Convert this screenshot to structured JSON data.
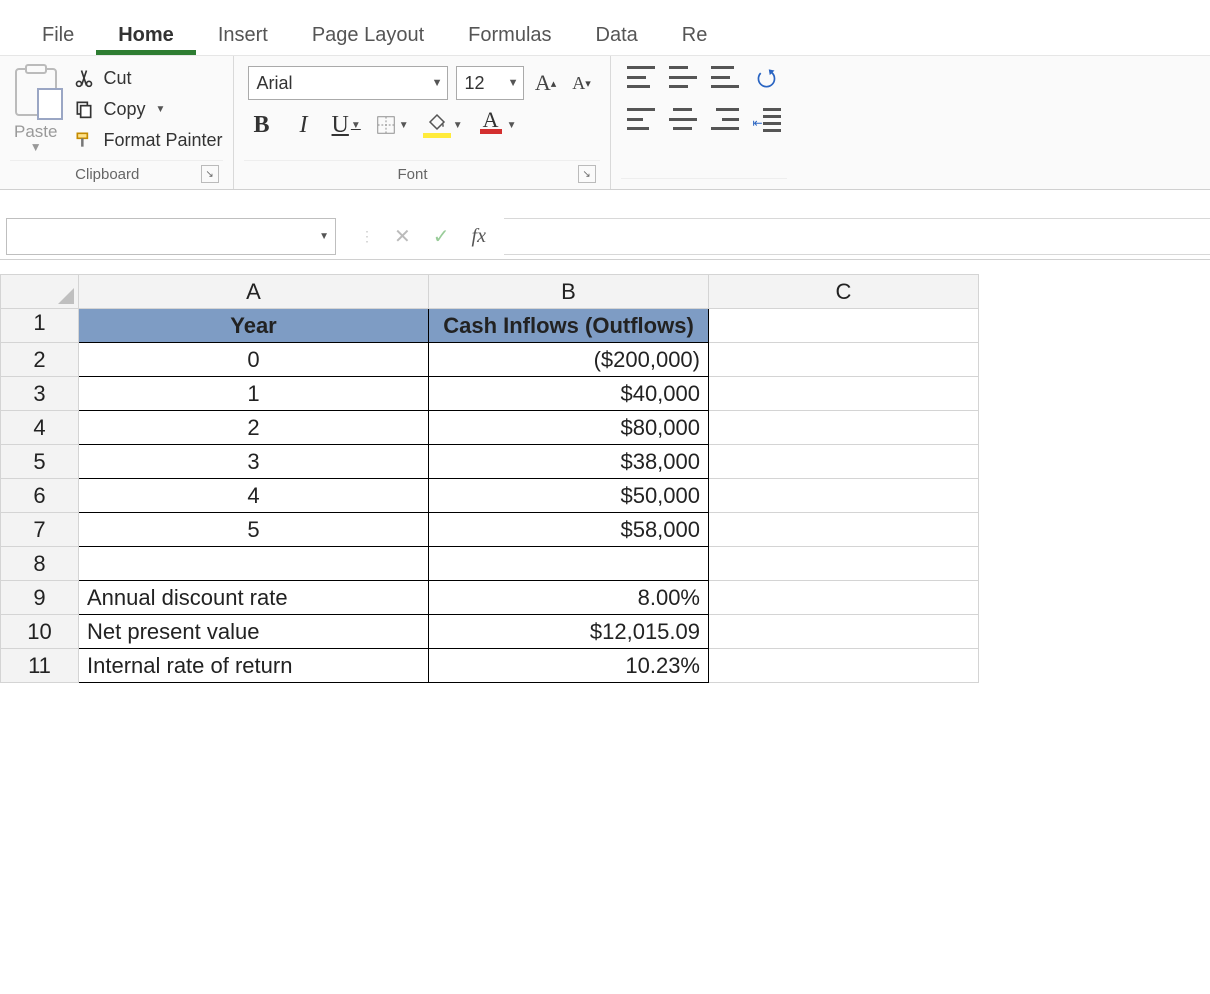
{
  "tabs": {
    "file": "File",
    "home": "Home",
    "insert": "Insert",
    "layout": "Page Layout",
    "formulas": "Formulas",
    "data": "Data",
    "review": "Re"
  },
  "active_tab": "home",
  "clipboard": {
    "paste_label": "Paste",
    "cut_label": "Cut",
    "copy_label": "Copy",
    "painter_label": "Format Painter",
    "group_label": "Clipboard"
  },
  "font": {
    "name_value": "Arial",
    "size_value": "12",
    "grow_label": "A",
    "shrink_label": "A",
    "group_label": "Font"
  },
  "formula_bar": {
    "name_box_value": "",
    "fx_label": "fx",
    "formula_value": ""
  },
  "sheet": {
    "col_widths": {
      "A": 350,
      "B": 280,
      "C": 270
    },
    "columns": [
      "A",
      "B",
      "C"
    ],
    "header_fill": "#7e9cc4",
    "header_row": {
      "A": "Year",
      "B": "Cash Inflows (Outflows)"
    },
    "data_rows": [
      {
        "row": 2,
        "A": "0",
        "B": "($200,000)"
      },
      {
        "row": 3,
        "A": "1",
        "B": "$40,000"
      },
      {
        "row": 4,
        "A": "2",
        "B": "$80,000"
      },
      {
        "row": 5,
        "A": "3",
        "B": "$38,000"
      },
      {
        "row": 6,
        "A": "4",
        "B": "$50,000"
      },
      {
        "row": 7,
        "A": "5",
        "B": "$58,000"
      }
    ],
    "blank_row": 8,
    "summary_rows": [
      {
        "row": 9,
        "A": "Annual discount rate",
        "B": "8.00%"
      },
      {
        "row": 10,
        "A": "Net present value",
        "B": "$12,015.09"
      },
      {
        "row": 11,
        "A": "Internal rate of return",
        "B": "10.23%"
      }
    ]
  }
}
